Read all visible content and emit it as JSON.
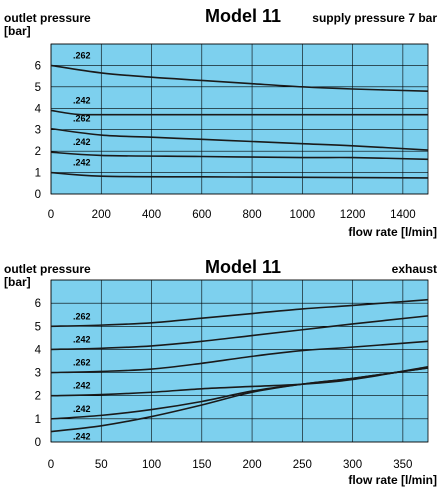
{
  "colors": {
    "plot_bg": "#7dd0ee",
    "grid": "#000000",
    "curve": "#1a1a1a"
  },
  "chart_data": [
    {
      "type": "line",
      "title": "Model 11",
      "ylabel_line1": "outlet pressure",
      "ylabel_line2": "[bar]",
      "corner_label": "supply pressure 7 bar",
      "xlabel": "flow rate [l/min]",
      "xlim": [
        0,
        1500
      ],
      "ylim": [
        0,
        7
      ],
      "xticks": [
        0,
        200,
        400,
        600,
        800,
        1000,
        1200,
        1400
      ],
      "yticks": [
        0,
        1,
        2,
        3,
        4,
        5,
        6
      ],
      "grid": true,
      "series": [
        {
          "name": ".262",
          "points": [
            [
              0,
              6.0
            ],
            [
              200,
              5.65
            ],
            [
              400,
              5.45
            ],
            [
              600,
              5.3
            ],
            [
              800,
              5.15
            ],
            [
              1000,
              5.0
            ],
            [
              1200,
              4.9
            ],
            [
              1500,
              4.8
            ]
          ]
        },
        {
          "name": ".242",
          "points": [
            [
              0,
              3.9
            ],
            [
              100,
              3.72
            ],
            [
              200,
              3.7
            ],
            [
              600,
              3.7
            ],
            [
              1000,
              3.7
            ],
            [
              1500,
              3.7
            ]
          ]
        },
        {
          "name": ".262",
          "points": [
            [
              0,
              3.05
            ],
            [
              200,
              2.75
            ],
            [
              400,
              2.65
            ],
            [
              600,
              2.55
            ],
            [
              800,
              2.45
            ],
            [
              1000,
              2.35
            ],
            [
              1200,
              2.25
            ],
            [
              1500,
              2.05
            ]
          ]
        },
        {
          "name": ".242",
          "points": [
            [
              0,
              1.95
            ],
            [
              200,
              1.8
            ],
            [
              600,
              1.75
            ],
            [
              1000,
              1.7
            ],
            [
              1200,
              1.7
            ],
            [
              1500,
              1.62
            ]
          ]
        },
        {
          "name": ".242",
          "points": [
            [
              0,
              1.0
            ],
            [
              200,
              0.83
            ],
            [
              600,
              0.8
            ],
            [
              1000,
              0.78
            ],
            [
              1500,
              0.75
            ]
          ]
        }
      ]
    },
    {
      "type": "line",
      "title": "Model 11",
      "ylabel_line1": "outlet pressure",
      "ylabel_line2": "[bar]",
      "corner_label": "exhaust",
      "xlabel": "flow rate [l/min]",
      "xlim": [
        0,
        375
      ],
      "ylim": [
        0,
        7
      ],
      "xticks": [
        0,
        50,
        100,
        150,
        200,
        250,
        300,
        350
      ],
      "yticks": [
        0,
        1,
        2,
        3,
        4,
        5,
        6
      ],
      "grid": true,
      "series": [
        {
          "name": ".262",
          "points": [
            [
              0,
              5.0
            ],
            [
              50,
              5.05
            ],
            [
              100,
              5.15
            ],
            [
              150,
              5.35
            ],
            [
              200,
              5.55
            ],
            [
              250,
              5.75
            ],
            [
              300,
              5.9
            ],
            [
              375,
              6.15
            ]
          ]
        },
        {
          "name": ".242",
          "points": [
            [
              0,
              4.0
            ],
            [
              50,
              4.05
            ],
            [
              100,
              4.15
            ],
            [
              150,
              4.35
            ],
            [
              200,
              4.6
            ],
            [
              250,
              4.85
            ],
            [
              300,
              5.1
            ],
            [
              375,
              5.45
            ]
          ]
        },
        {
          "name": ".262",
          "points": [
            [
              0,
              3.0
            ],
            [
              50,
              3.05
            ],
            [
              100,
              3.15
            ],
            [
              150,
              3.4
            ],
            [
              200,
              3.7
            ],
            [
              250,
              3.95
            ],
            [
              300,
              4.1
            ],
            [
              375,
              4.35
            ]
          ]
        },
        {
          "name": ".242",
          "points": [
            [
              0,
              2.0
            ],
            [
              50,
              2.05
            ],
            [
              100,
              2.15
            ],
            [
              150,
              2.3
            ],
            [
              200,
              2.4
            ],
            [
              250,
              2.5
            ],
            [
              300,
              2.7
            ],
            [
              375,
              3.25
            ]
          ]
        },
        {
          "name": ".242",
          "points": [
            [
              0,
              1.0
            ],
            [
              50,
              1.15
            ],
            [
              100,
              1.4
            ],
            [
              150,
              1.75
            ],
            [
              200,
              2.2
            ],
            [
              250,
              2.5
            ],
            [
              300,
              2.75
            ],
            [
              375,
              3.2
            ]
          ]
        },
        {
          "name": ".242",
          "points": [
            [
              0,
              0.45
            ],
            [
              50,
              0.7
            ],
            [
              100,
              1.1
            ],
            [
              150,
              1.6
            ],
            [
              200,
              2.15
            ],
            [
              250,
              2.5
            ],
            [
              300,
              2.75
            ],
            [
              375,
              3.2
            ]
          ]
        }
      ]
    }
  ]
}
